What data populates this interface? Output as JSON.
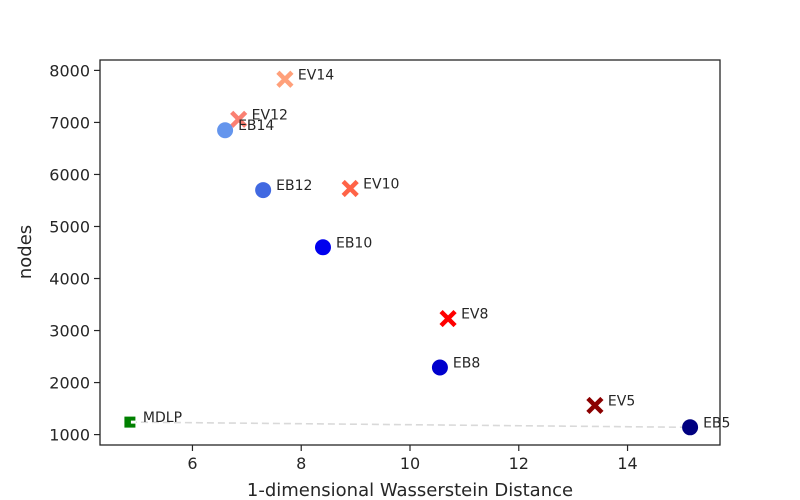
{
  "chart_data": {
    "type": "scatter",
    "title": "",
    "xlabel": "1-dimensional Wasserstein Distance",
    "ylabel": "nodes",
    "xlim": [
      4.3,
      15.7
    ],
    "ylim": [
      800,
      8200
    ],
    "xticks": [
      6,
      8,
      10,
      12,
      14
    ],
    "yticks": [
      1000,
      2000,
      3000,
      4000,
      5000,
      6000,
      7000,
      8000
    ],
    "grid": false,
    "points": [
      {
        "label": "EV14",
        "x": 7.7,
        "y": 7830,
        "marker": "x",
        "color": "#ffa07a"
      },
      {
        "label": "EV12",
        "x": 6.85,
        "y": 7060,
        "marker": "x",
        "color": "#fa8072"
      },
      {
        "label": "EB14",
        "x": 6.6,
        "y": 6850,
        "marker": "o",
        "color": "#6495ed"
      },
      {
        "label": "EB12",
        "x": 7.3,
        "y": 5700,
        "marker": "o",
        "color": "#4169e1"
      },
      {
        "label": "EV10",
        "x": 8.9,
        "y": 5730,
        "marker": "x",
        "color": "#ff6347"
      },
      {
        "label": "EB10",
        "x": 8.4,
        "y": 4600,
        "marker": "o",
        "color": "#0000ee"
      },
      {
        "label": "EV8",
        "x": 10.7,
        "y": 3230,
        "marker": "x",
        "color": "#ff0000"
      },
      {
        "label": "EB8",
        "x": 10.55,
        "y": 2290,
        "marker": "o",
        "color": "#0000cd"
      },
      {
        "label": "EV5",
        "x": 13.4,
        "y": 1560,
        "marker": "x",
        "color": "#8b0000"
      },
      {
        "label": "EB5",
        "x": 15.15,
        "y": 1140,
        "marker": "o",
        "color": "#000080"
      },
      {
        "label": "MDLP",
        "x": 4.85,
        "y": 1240,
        "marker": "s",
        "color": "#008000"
      }
    ],
    "reference_line": {
      "x": [
        4.85,
        15.15
      ],
      "y": [
        1240,
        1140
      ],
      "style": "dashed",
      "color": "#d9d9d9"
    }
  }
}
